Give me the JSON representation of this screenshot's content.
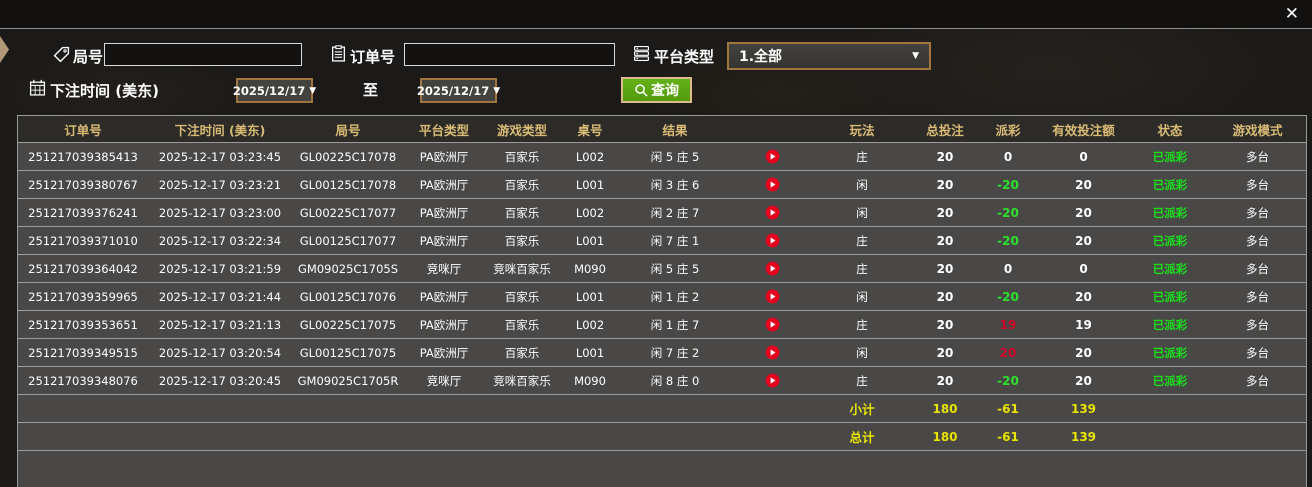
{
  "window": {
    "close_label": "✕"
  },
  "filters": {
    "round_label": "局号",
    "round_value": "",
    "order_label": "订单号",
    "order_value": "",
    "platform_label": "平台类型",
    "platform_value": "1.全部",
    "bet_time_label": "下注时间 (美东)",
    "date_from": "2025/12/17",
    "to_label": "至",
    "date_to": "2025/12/17",
    "search_label": "查询"
  },
  "icons": {
    "round": "tag-icon",
    "order": "clipboard-icon",
    "platform": "list-icon",
    "bet_time": "calendar-icon",
    "search": "search-icon",
    "result_replay": "play-icon",
    "close": "close-icon"
  },
  "colors": {
    "header_text": "#d9bb76",
    "row_bg": "#4a4846",
    "header_bg": "#2d2b28",
    "payout_negative": "#2ce22c",
    "payout_positive": "#cf0428",
    "status_paid": "#19e119",
    "totals_yellow": "#e8e400",
    "search_button_green": "#58a412",
    "dropdown_border": "#a0763f",
    "play_icon_red": "#e8001c"
  },
  "table": {
    "columns": [
      "订单号",
      "下注时间 (美东)",
      "局号",
      "平台类型",
      "游戏类型",
      "桌号",
      "结果",
      "",
      "玩法",
      "总投注",
      "派彩",
      "有效投注额",
      "状态",
      "游戏模式"
    ],
    "rows": [
      {
        "order_id": "251217039385413",
        "bet_time": "2025-12-17 03:23:45",
        "round_id": "GL00225C17078",
        "platform": "PA欧洲厅",
        "game_type": "百家乐",
        "table_no": "L002",
        "result": "闲 5 庄 5",
        "play_type": "庄",
        "total_bet": "20",
        "payout": "0",
        "valid_bet": "0",
        "status": "已派彩",
        "game_mode": "多台"
      },
      {
        "order_id": "251217039380767",
        "bet_time": "2025-12-17 03:23:21",
        "round_id": "GL00125C17078",
        "platform": "PA欧洲厅",
        "game_type": "百家乐",
        "table_no": "L001",
        "result": "闲 3 庄 6",
        "play_type": "闲",
        "total_bet": "20",
        "payout": "-20",
        "valid_bet": "20",
        "status": "已派彩",
        "game_mode": "多台"
      },
      {
        "order_id": "251217039376241",
        "bet_time": "2025-12-17 03:23:00",
        "round_id": "GL00225C17077",
        "platform": "PA欧洲厅",
        "game_type": "百家乐",
        "table_no": "L002",
        "result": "闲 2 庄 7",
        "play_type": "闲",
        "total_bet": "20",
        "payout": "-20",
        "valid_bet": "20",
        "status": "已派彩",
        "game_mode": "多台"
      },
      {
        "order_id": "251217039371010",
        "bet_time": "2025-12-17 03:22:34",
        "round_id": "GL00125C17077",
        "platform": "PA欧洲厅",
        "game_type": "百家乐",
        "table_no": "L001",
        "result": "闲 7 庄 1",
        "play_type": "庄",
        "total_bet": "20",
        "payout": "-20",
        "valid_bet": "20",
        "status": "已派彩",
        "game_mode": "多台"
      },
      {
        "order_id": "251217039364042",
        "bet_time": "2025-12-17 03:21:59",
        "round_id": "GM09025C1705S",
        "platform": "竞咪厅",
        "game_type": "竞咪百家乐",
        "table_no": "M090",
        "result": "闲 5 庄 5",
        "play_type": "庄",
        "total_bet": "20",
        "payout": "0",
        "valid_bet": "0",
        "status": "已派彩",
        "game_mode": "多台"
      },
      {
        "order_id": "251217039359965",
        "bet_time": "2025-12-17 03:21:44",
        "round_id": "GL00125C17076",
        "platform": "PA欧洲厅",
        "game_type": "百家乐",
        "table_no": "L001",
        "result": "闲 1 庄 2",
        "play_type": "闲",
        "total_bet": "20",
        "payout": "-20",
        "valid_bet": "20",
        "status": "已派彩",
        "game_mode": "多台"
      },
      {
        "order_id": "251217039353651",
        "bet_time": "2025-12-17 03:21:13",
        "round_id": "GL00225C17075",
        "platform": "PA欧洲厅",
        "game_type": "百家乐",
        "table_no": "L002",
        "result": "闲 1 庄 7",
        "play_type": "庄",
        "total_bet": "20",
        "payout": "19",
        "valid_bet": "19",
        "status": "已派彩",
        "game_mode": "多台"
      },
      {
        "order_id": "251217039349515",
        "bet_time": "2025-12-17 03:20:54",
        "round_id": "GL00125C17075",
        "platform": "PA欧洲厅",
        "game_type": "百家乐",
        "table_no": "L001",
        "result": "闲 7 庄 2",
        "play_type": "闲",
        "total_bet": "20",
        "payout": "20",
        "valid_bet": "20",
        "status": "已派彩",
        "game_mode": "多台"
      },
      {
        "order_id": "251217039348076",
        "bet_time": "2025-12-17 03:20:45",
        "round_id": "GM09025C1705R",
        "platform": "竞咪厅",
        "game_type": "竞咪百家乐",
        "table_no": "M090",
        "result": "闲 8 庄 0",
        "play_type": "庄",
        "total_bet": "20",
        "payout": "-20",
        "valid_bet": "20",
        "status": "已派彩",
        "game_mode": "多台"
      }
    ],
    "subtotal": {
      "label": "小计",
      "total_bet": "180",
      "payout": "-61",
      "valid_bet": "139"
    },
    "total": {
      "label": "总计",
      "total_bet": "180",
      "payout": "-61",
      "valid_bet": "139"
    }
  }
}
